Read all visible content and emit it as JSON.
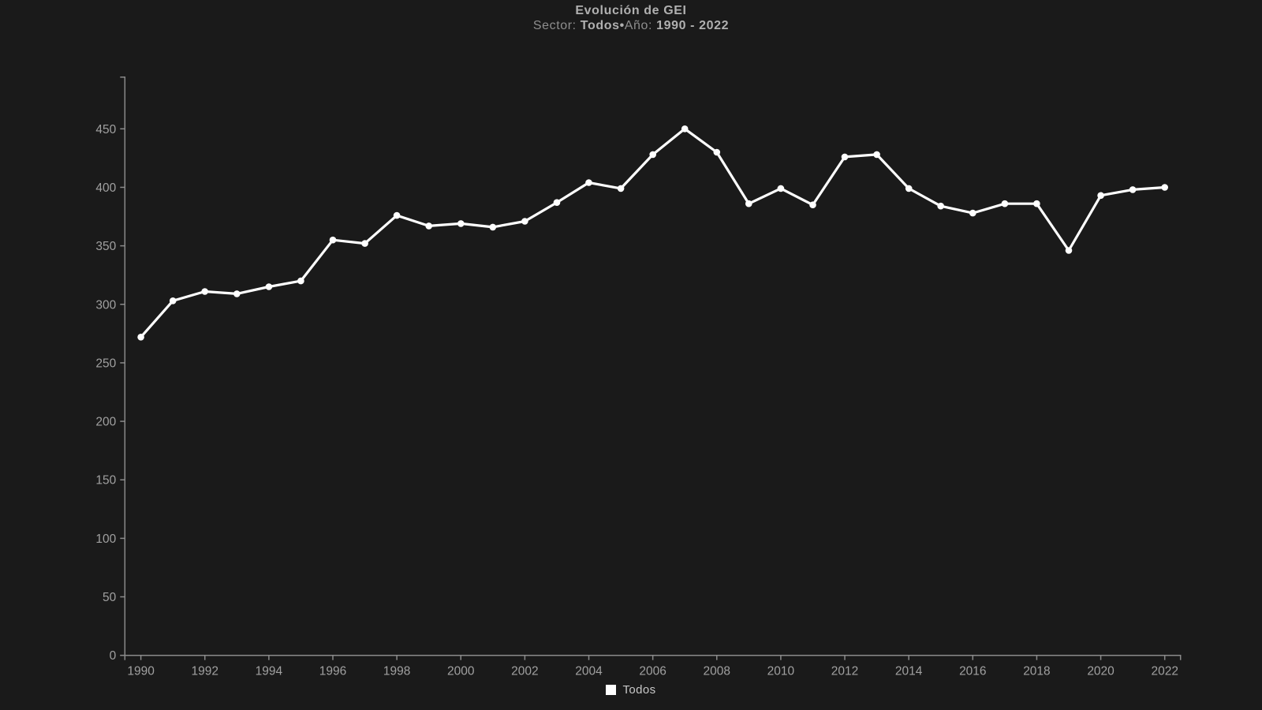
{
  "header": {
    "title": "Evolución de GEI",
    "subtitle": {
      "sector_label": "Sector: ",
      "sector_value": "Todos",
      "separator": "•",
      "year_label": "Año: ",
      "year_value": "1990 - 2022"
    }
  },
  "chart_data": {
    "type": "line",
    "title": "Evolución de GEI",
    "xlabel": "",
    "ylabel": "",
    "x": [
      1990,
      1991,
      1992,
      1993,
      1994,
      1995,
      1996,
      1997,
      1998,
      1999,
      2000,
      2001,
      2002,
      2003,
      2004,
      2005,
      2006,
      2007,
      2008,
      2009,
      2010,
      2011,
      2012,
      2013,
      2014,
      2015,
      2016,
      2017,
      2018,
      2019,
      2020,
      2021,
      2022
    ],
    "series": [
      {
        "name": "Todos",
        "color": "#ffffff",
        "values": [
          272,
          303,
          311,
          309,
          315,
          320,
          355,
          352,
          376,
          367,
          369,
          366,
          371,
          387,
          404,
          399,
          428,
          450,
          430,
          386,
          399,
          385,
          426,
          428,
          399,
          384,
          378,
          386,
          386,
          346,
          393,
          398,
          400
        ]
      }
    ],
    "x_tick_labels": [
      "1990",
      "1992",
      "1994",
      "1996",
      "1998",
      "2000",
      "2002",
      "2004",
      "2006",
      "2008",
      "2010",
      "2012",
      "2014",
      "2016",
      "2018",
      "2020",
      "2022"
    ],
    "y_ticks": [
      0,
      50,
      100,
      150,
      200,
      250,
      300,
      350,
      400,
      450
    ],
    "ylim": [
      0,
      494
    ],
    "grid": false,
    "legend_position": "bottom",
    "markers": true
  },
  "legend": {
    "items": [
      {
        "label": "Todos",
        "swatch_color": "#ffffff"
      }
    ]
  },
  "colors": {
    "background": "#1a1a1a",
    "axis": "#8a8a8a",
    "tick_label": "#a0a0a0",
    "line": "#ffffff",
    "point": "#ffffff"
  }
}
